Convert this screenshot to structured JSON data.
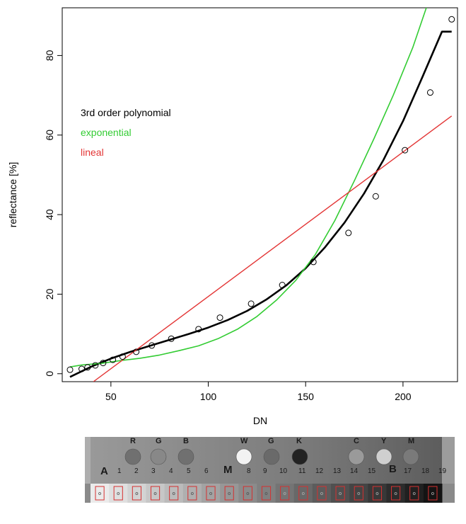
{
  "chart_data": {
    "type": "scatter",
    "title": "",
    "xlabel": "DN",
    "ylabel": "reflectance [%]",
    "xlim": [
      25,
      228
    ],
    "ylim": [
      -2,
      92
    ],
    "xticks": [
      50,
      100,
      150,
      200
    ],
    "yticks": [
      0,
      20,
      40,
      60,
      80
    ],
    "grid": false,
    "legend_position": "left",
    "points": [
      {
        "x": 29,
        "y": 1.0
      },
      {
        "x": 35,
        "y": 1.2
      },
      {
        "x": 38,
        "y": 1.6
      },
      {
        "x": 42,
        "y": 2.1
      },
      {
        "x": 46,
        "y": 2.7
      },
      {
        "x": 51,
        "y": 3.5
      },
      {
        "x": 56,
        "y": 4.3
      },
      {
        "x": 63,
        "y": 5.5
      },
      {
        "x": 71,
        "y": 7.1
      },
      {
        "x": 81,
        "y": 8.8
      },
      {
        "x": 95,
        "y": 11.2
      },
      {
        "x": 106,
        "y": 14.1
      },
      {
        "x": 122,
        "y": 17.6
      },
      {
        "x": 138,
        "y": 22.3
      },
      {
        "x": 154,
        "y": 28.1
      },
      {
        "x": 172,
        "y": 35.4
      },
      {
        "x": 186,
        "y": 44.6
      },
      {
        "x": 201,
        "y": 56.2
      },
      {
        "x": 214,
        "y": 70.7
      },
      {
        "x": 225,
        "y": 89.1
      }
    ],
    "series": [
      {
        "name": "3rd order polynomial",
        "color": "#000000",
        "x": [
          29,
          40,
          50,
          60,
          70,
          80,
          90,
          100,
          110,
          120,
          130,
          140,
          150,
          160,
          170,
          180,
          190,
          200,
          210,
          220,
          225
        ],
        "y": [
          -0.8,
          1.8,
          3.8,
          5.5,
          7.0,
          8.5,
          10.0,
          11.6,
          13.5,
          15.8,
          18.7,
          22.2,
          26.5,
          31.8,
          38.0,
          45.3,
          53.8,
          63.5,
          74.6,
          86.0,
          86.0
        ]
      },
      {
        "name": "exponential",
        "color": "#33cc33",
        "x": [
          29,
          35,
          45,
          55,
          65,
          75,
          85,
          95,
          105,
          115,
          125,
          135,
          145,
          155,
          165,
          175,
          185,
          195,
          205,
          212
        ],
        "y": [
          1.7,
          2.2,
          2.6,
          3.3,
          3.9,
          4.7,
          5.8,
          7.0,
          8.8,
          11.2,
          14.4,
          18.5,
          23.5,
          30.0,
          38.5,
          48.5,
          59.0,
          70.0,
          82.0,
          92.0
        ]
      },
      {
        "name": "lineal",
        "color": "#e33535",
        "x": [
          41,
          225
        ],
        "y": [
          -2.0,
          64.8
        ]
      }
    ]
  },
  "card": {
    "letters_top": [
      "R",
      "G",
      "B",
      "W",
      "G",
      "K",
      "C",
      "Y",
      "M"
    ],
    "numbers": [
      "1",
      "2",
      "3",
      "4",
      "5",
      "6",
      "8",
      "9",
      "10",
      "11",
      "12",
      "13",
      "14",
      "15",
      "17",
      "18",
      "19"
    ],
    "labels_big": [
      "A",
      "M",
      "B"
    ]
  }
}
